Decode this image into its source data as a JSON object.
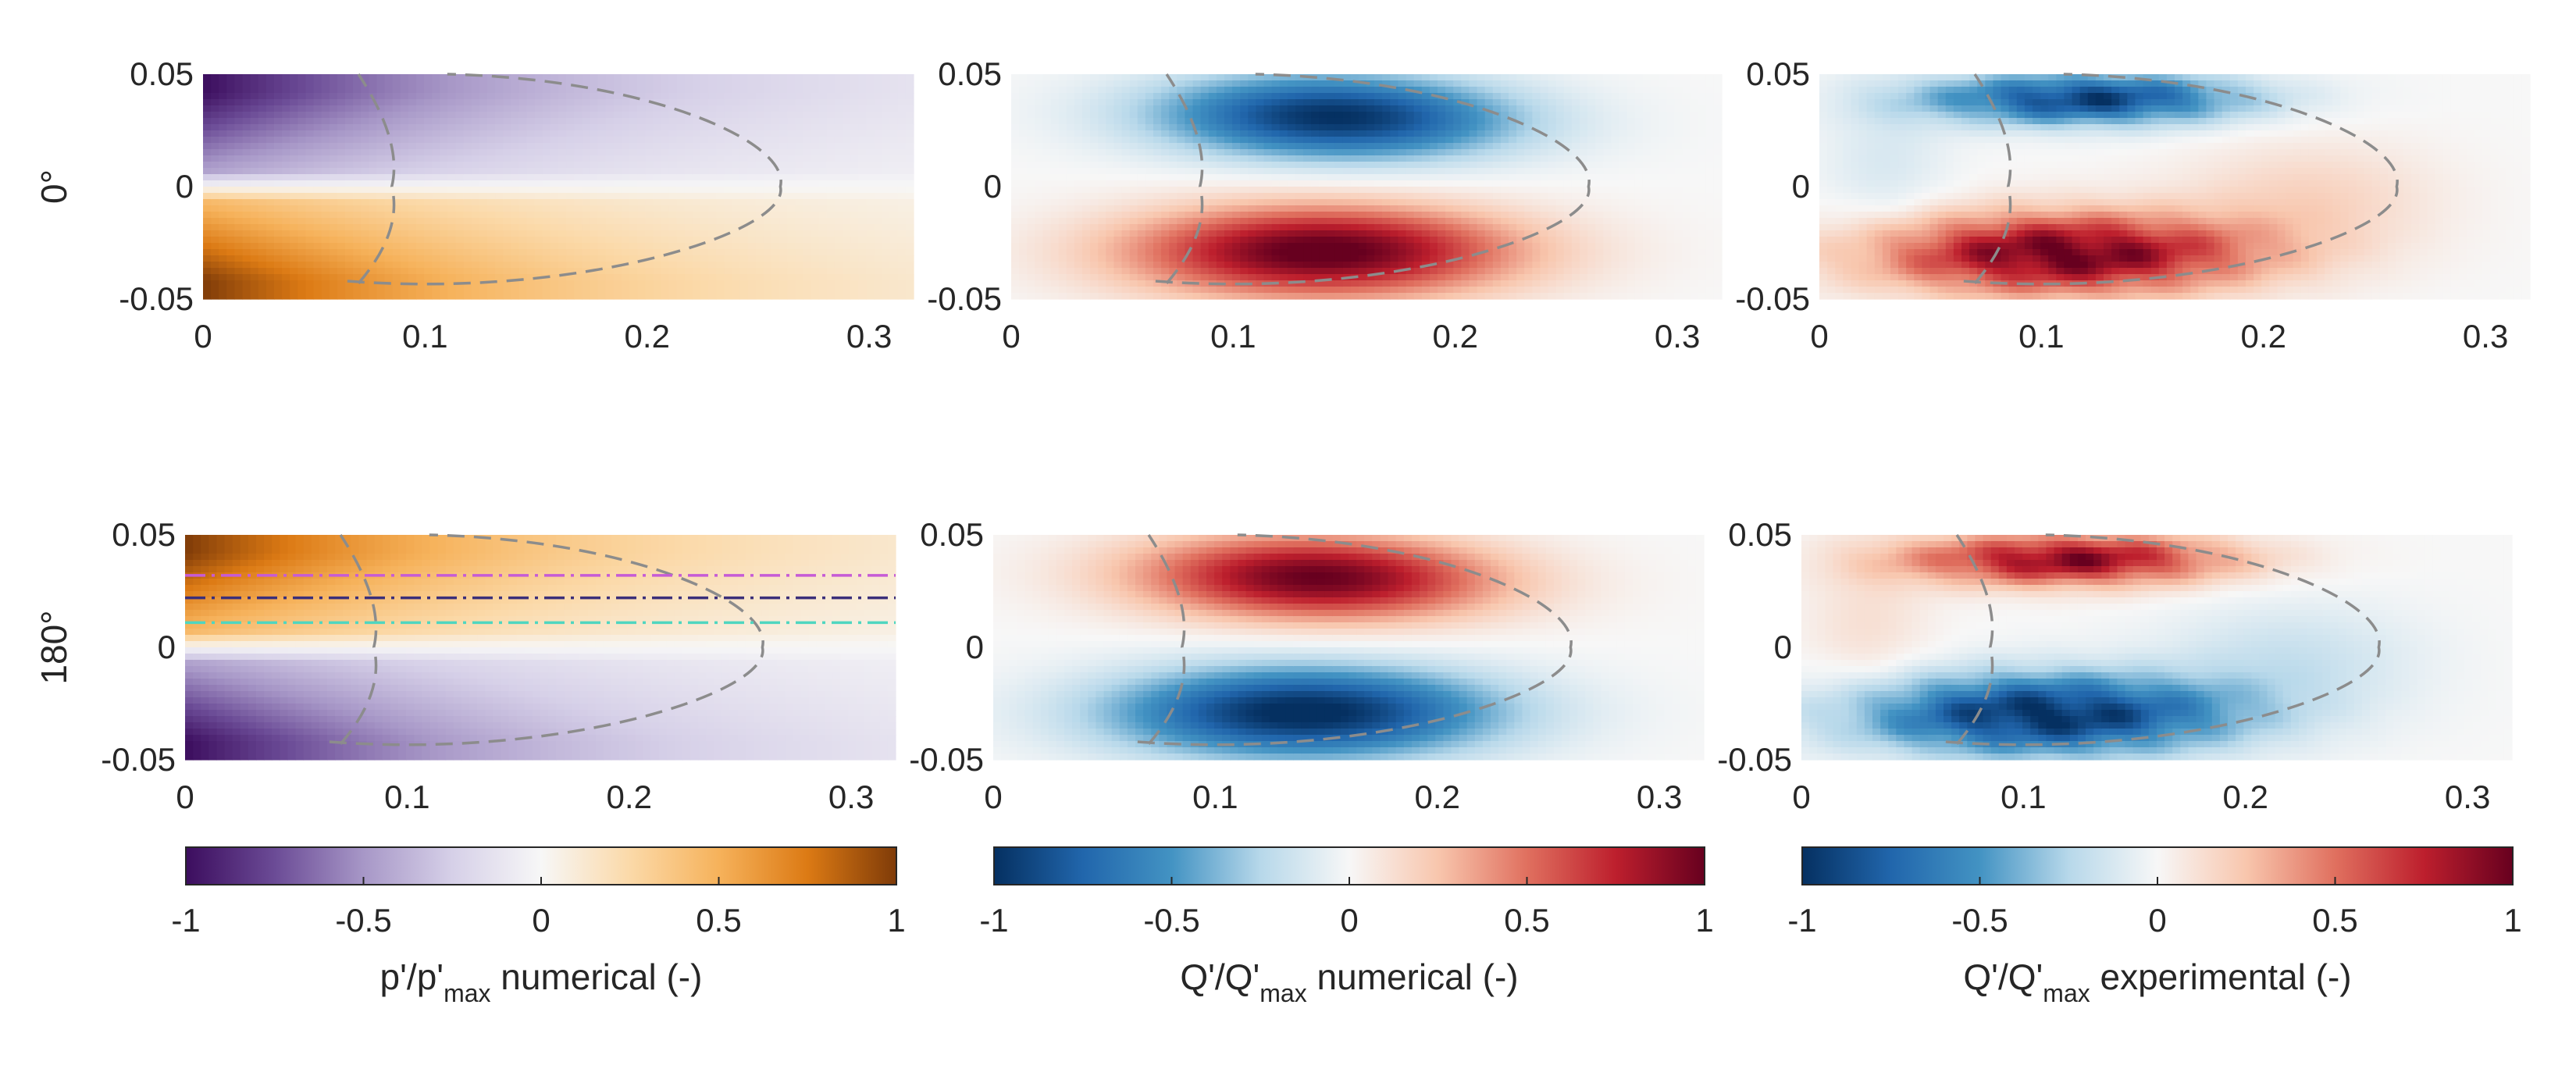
{
  "chart_data": {
    "type": "heatmap",
    "xlim": [
      0,
      0.32
    ],
    "ylim": [
      -0.05,
      0.05
    ],
    "x_ticks": [
      "0",
      "0.1",
      "0.2",
      "0.3"
    ],
    "x_tick_values": [
      0,
      0.1,
      0.2,
      0.3
    ],
    "y_ticks": [
      "0.05",
      "0",
      "-0.05"
    ],
    "y_tick_values": [
      0.05,
      0,
      -0.05
    ],
    "rows": [
      {
        "label": "0°",
        "sign": 1
      },
      {
        "label": "180°",
        "sign": -1
      }
    ],
    "columns": [
      {
        "colorbar_label_main": "p'/p'",
        "colorbar_label_sub": "max",
        "colorbar_label_rest": " numerical (-)",
        "colormap": "purple-orange",
        "colors": {
          "neg": "#3c0d5e",
          "mid": "#f7f7f7",
          "pos": "#7f3b08"
        },
        "field": "pressure"
      },
      {
        "colorbar_label_main": "Q'/Q'",
        "colorbar_label_sub": "max",
        "colorbar_label_rest": " numerical (-)",
        "colormap": "blue-red",
        "colors": {
          "neg": "#053061",
          "mid": "#f7f7f7",
          "pos": "#67001f"
        },
        "field": "heat-release"
      },
      {
        "colorbar_label_main": "Q'/Q'",
        "colorbar_label_sub": "max",
        "colorbar_label_rest": " experimental (-)",
        "colormap": "blue-red",
        "colors": {
          "neg": "#053061",
          "mid": "#f7f7f7",
          "pos": "#67001f"
        },
        "field": "heat-release-experimental"
      }
    ],
    "colorbar": {
      "range": [
        -1,
        1
      ],
      "ticks": [
        "-1",
        "-0.5",
        "0",
        "0.5",
        "1"
      ],
      "tick_values": [
        -1,
        -0.5,
        0,
        0.5,
        1
      ]
    },
    "flame_contour": {
      "style": "dashed",
      "color": "#8c8c8c",
      "inner_tip_x": 0.085,
      "outer_tip_x": 0.26,
      "root_x": 0.07
    },
    "probe_lines": [
      {
        "y": 0.032,
        "color": "#c65bd6"
      },
      {
        "y": 0.022,
        "color": "#3b2f7a"
      },
      {
        "y": 0.011,
        "color": "#4fd6c0"
      }
    ]
  }
}
